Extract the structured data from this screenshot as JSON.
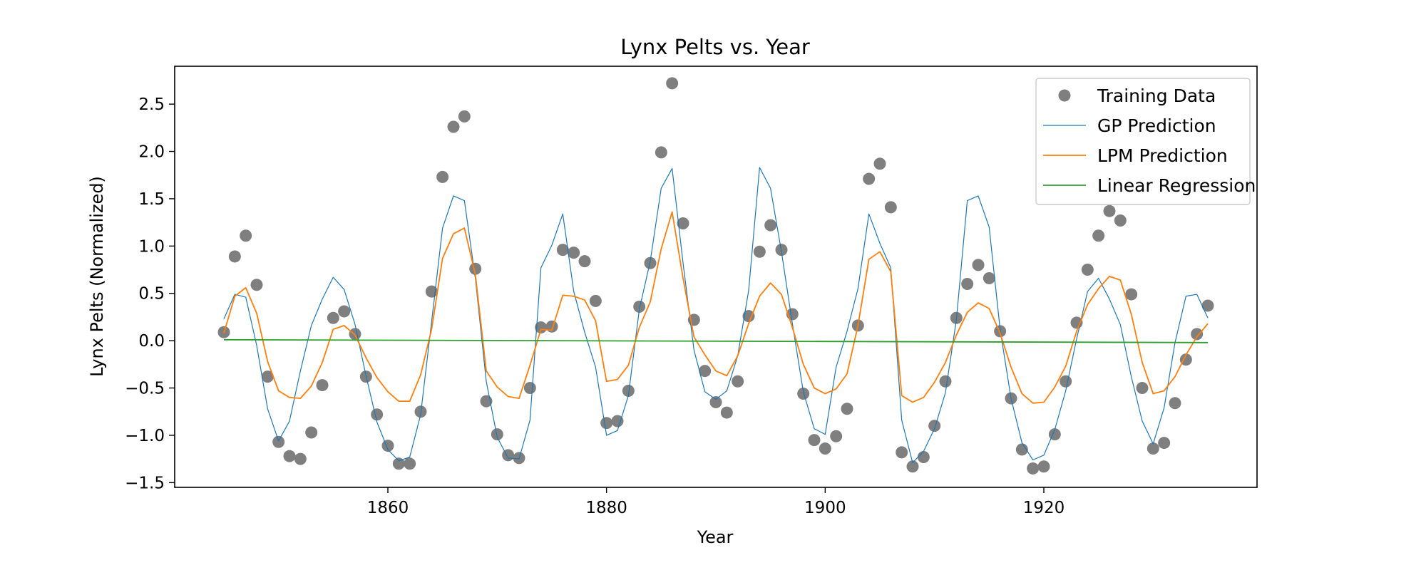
{
  "chart_data": {
    "type": "line",
    "title": "Lynx Pelts vs. Year",
    "xlabel": "Year",
    "ylabel": "Lynx Pelts (Normalized)",
    "xlim": [
      1840.5,
      1939.5
    ],
    "ylim": [
      -1.55,
      2.9
    ],
    "xticks": [
      1860,
      1880,
      1900,
      1920
    ],
    "yticks": [
      -1.5,
      -1.0,
      -0.5,
      0.0,
      0.5,
      1.0,
      1.5,
      2.0,
      2.5
    ],
    "ytick_labels": [
      "−1.5",
      "−1.0",
      "−0.5",
      "0.0",
      "0.5",
      "1.0",
      "1.5",
      "2.0",
      "2.5"
    ],
    "grid": false,
    "legend_position": "top-right",
    "colors": {
      "training": "#7f7f7f",
      "gp": "#1f77b4",
      "lpm": "#ff7f0e",
      "linear": "#2ca02c"
    },
    "series": [
      {
        "name": "Training Data",
        "kind": "scatter",
        "color": "#7f7f7f",
        "x": [
          1845,
          1846,
          1847,
          1848,
          1849,
          1850,
          1851,
          1852,
          1853,
          1854,
          1855,
          1856,
          1857,
          1858,
          1859,
          1860,
          1861,
          1862,
          1863,
          1864,
          1865,
          1866,
          1867,
          1868,
          1869,
          1870,
          1871,
          1872,
          1873,
          1874,
          1875,
          1876,
          1877,
          1878,
          1879,
          1880,
          1881,
          1882,
          1883,
          1884,
          1885,
          1886,
          1887,
          1888,
          1889,
          1890,
          1891,
          1892,
          1893,
          1894,
          1895,
          1896,
          1897,
          1898,
          1899,
          1900,
          1901,
          1902,
          1903,
          1904,
          1905,
          1906,
          1907,
          1908,
          1909,
          1910,
          1911,
          1912,
          1913,
          1914,
          1915,
          1916,
          1917,
          1918,
          1919,
          1920,
          1921,
          1922,
          1923,
          1924,
          1925,
          1926,
          1927,
          1928,
          1929,
          1930,
          1931,
          1932,
          1933,
          1934,
          1935
        ],
        "y": [
          0.09,
          0.89,
          1.11,
          0.59,
          -0.38,
          -1.07,
          -1.22,
          -1.25,
          -0.97,
          -0.47,
          0.24,
          0.31,
          0.07,
          -0.38,
          -0.78,
          -1.11,
          -1.3,
          -1.3,
          -0.75,
          0.52,
          1.73,
          2.26,
          2.37,
          0.76,
          -0.64,
          -0.99,
          -1.21,
          -1.24,
          -0.5,
          0.14,
          0.15,
          0.96,
          0.93,
          0.84,
          0.42,
          -0.87,
          -0.85,
          -0.53,
          0.36,
          0.82,
          1.99,
          2.72,
          1.24,
          0.22,
          -0.32,
          -0.65,
          -0.76,
          -0.43,
          0.26,
          0.94,
          1.22,
          0.96,
          0.28,
          -0.56,
          -1.05,
          -1.14,
          -1.01,
          -0.72,
          0.16,
          1.71,
          1.87,
          1.41,
          -1.18,
          -1.33,
          -1.23,
          -0.9,
          -0.43,
          0.24,
          0.6,
          0.8,
          0.66,
          0.1,
          -0.61,
          -1.15,
          -1.35,
          -1.33,
          -0.99,
          -0.43,
          0.19,
          0.75,
          1.11,
          1.37,
          1.27,
          0.49,
          -0.5,
          -1.14,
          -1.08,
          -0.66,
          -0.2,
          0.07,
          0.37
        ]
      },
      {
        "name": "GP Prediction",
        "kind": "line",
        "color": "#1f77b4",
        "x": [
          1845,
          1846,
          1847,
          1848,
          1849,
          1850,
          1851,
          1852,
          1853,
          1854,
          1855,
          1856,
          1857,
          1858,
          1859,
          1860,
          1861,
          1862,
          1863,
          1864,
          1865,
          1866,
          1867,
          1868,
          1869,
          1870,
          1871,
          1872,
          1873,
          1874,
          1875,
          1876,
          1877,
          1878,
          1879,
          1880,
          1881,
          1882,
          1883,
          1884,
          1885,
          1886,
          1887,
          1888,
          1889,
          1890,
          1891,
          1892,
          1893,
          1894,
          1895,
          1896,
          1897,
          1898,
          1899,
          1900,
          1901,
          1902,
          1903,
          1904,
          1905,
          1906,
          1907,
          1908,
          1909,
          1910,
          1911,
          1912,
          1913,
          1914,
          1915,
          1916,
          1917,
          1918,
          1919,
          1920,
          1921,
          1922,
          1923,
          1924,
          1925,
          1926,
          1927,
          1928,
          1929,
          1930,
          1931,
          1932,
          1933,
          1934,
          1935
        ],
        "y": [
          0.23,
          0.49,
          0.46,
          -0.05,
          -0.72,
          -1.06,
          -0.85,
          -0.32,
          0.16,
          0.44,
          0.67,
          0.54,
          0.17,
          -0.37,
          -0.86,
          -1.15,
          -1.27,
          -1.23,
          -0.78,
          0.2,
          1.19,
          1.53,
          1.48,
          0.66,
          -0.43,
          -1.02,
          -1.24,
          -1.25,
          -0.84,
          0.77,
          1.01,
          1.34,
          0.52,
          0.09,
          -0.28,
          -1.0,
          -0.95,
          -0.58,
          0.33,
          0.84,
          1.61,
          1.82,
          0.82,
          -0.1,
          -0.54,
          -0.62,
          -0.53,
          -0.16,
          0.53,
          1.83,
          1.61,
          0.94,
          0.18,
          -0.54,
          -0.93,
          -0.99,
          -0.28,
          0.1,
          0.55,
          1.34,
          1.03,
          0.77,
          -0.84,
          -1.29,
          -1.17,
          -0.93,
          -0.55,
          0.22,
          1.48,
          1.53,
          1.2,
          0.12,
          -0.61,
          -1.08,
          -1.26,
          -1.21,
          -0.94,
          -0.53,
          0.02,
          0.52,
          0.66,
          0.44,
          0.17,
          -0.38,
          -0.85,
          -1.09,
          -0.71,
          -0.02,
          0.47,
          0.49,
          0.24
        ]
      },
      {
        "name": "LPM Prediction",
        "kind": "line",
        "color": "#ff7f0e",
        "x": [
          1845,
          1846,
          1847,
          1848,
          1849,
          1850,
          1851,
          1852,
          1853,
          1854,
          1855,
          1856,
          1857,
          1858,
          1859,
          1860,
          1861,
          1862,
          1863,
          1864,
          1865,
          1866,
          1867,
          1868,
          1869,
          1870,
          1871,
          1872,
          1873,
          1874,
          1875,
          1876,
          1877,
          1878,
          1879,
          1880,
          1881,
          1882,
          1883,
          1884,
          1885,
          1886,
          1887,
          1888,
          1889,
          1890,
          1891,
          1892,
          1893,
          1894,
          1895,
          1896,
          1897,
          1898,
          1899,
          1900,
          1901,
          1902,
          1903,
          1904,
          1905,
          1906,
          1907,
          1908,
          1909,
          1910,
          1911,
          1912,
          1913,
          1914,
          1915,
          1916,
          1917,
          1918,
          1919,
          1920,
          1921,
          1922,
          1923,
          1924,
          1925,
          1926,
          1927,
          1928,
          1929,
          1930,
          1931,
          1932,
          1933,
          1934,
          1935
        ],
        "y": [
          0.08,
          0.47,
          0.56,
          0.29,
          -0.22,
          -0.53,
          -0.6,
          -0.61,
          -0.48,
          -0.23,
          0.12,
          0.16,
          0.06,
          -0.18,
          -0.39,
          -0.54,
          -0.64,
          -0.64,
          -0.36,
          0.12,
          0.87,
          1.13,
          1.19,
          0.7,
          -0.32,
          -0.49,
          -0.59,
          -0.61,
          -0.26,
          0.12,
          0.11,
          0.48,
          0.47,
          0.43,
          0.21,
          -0.43,
          -0.41,
          -0.26,
          0.14,
          0.41,
          0.97,
          1.36,
          0.66,
          0.04,
          -0.15,
          -0.32,
          -0.37,
          -0.16,
          0.18,
          0.47,
          0.61,
          0.49,
          0.14,
          -0.25,
          -0.5,
          -0.56,
          -0.51,
          -0.35,
          0.16,
          0.86,
          0.94,
          0.73,
          -0.58,
          -0.65,
          -0.6,
          -0.44,
          -0.23,
          0.06,
          0.3,
          0.4,
          0.34,
          0.08,
          -0.28,
          -0.56,
          -0.66,
          -0.65,
          -0.49,
          -0.27,
          0.1,
          0.38,
          0.55,
          0.68,
          0.64,
          0.28,
          -0.23,
          -0.56,
          -0.53,
          -0.38,
          -0.15,
          0.04,
          0.18
        ]
      },
      {
        "name": "Linear Regression",
        "kind": "line",
        "color": "#2ca02c",
        "x": [
          1845,
          1935
        ],
        "y": [
          0.01,
          -0.02
        ]
      }
    ]
  }
}
